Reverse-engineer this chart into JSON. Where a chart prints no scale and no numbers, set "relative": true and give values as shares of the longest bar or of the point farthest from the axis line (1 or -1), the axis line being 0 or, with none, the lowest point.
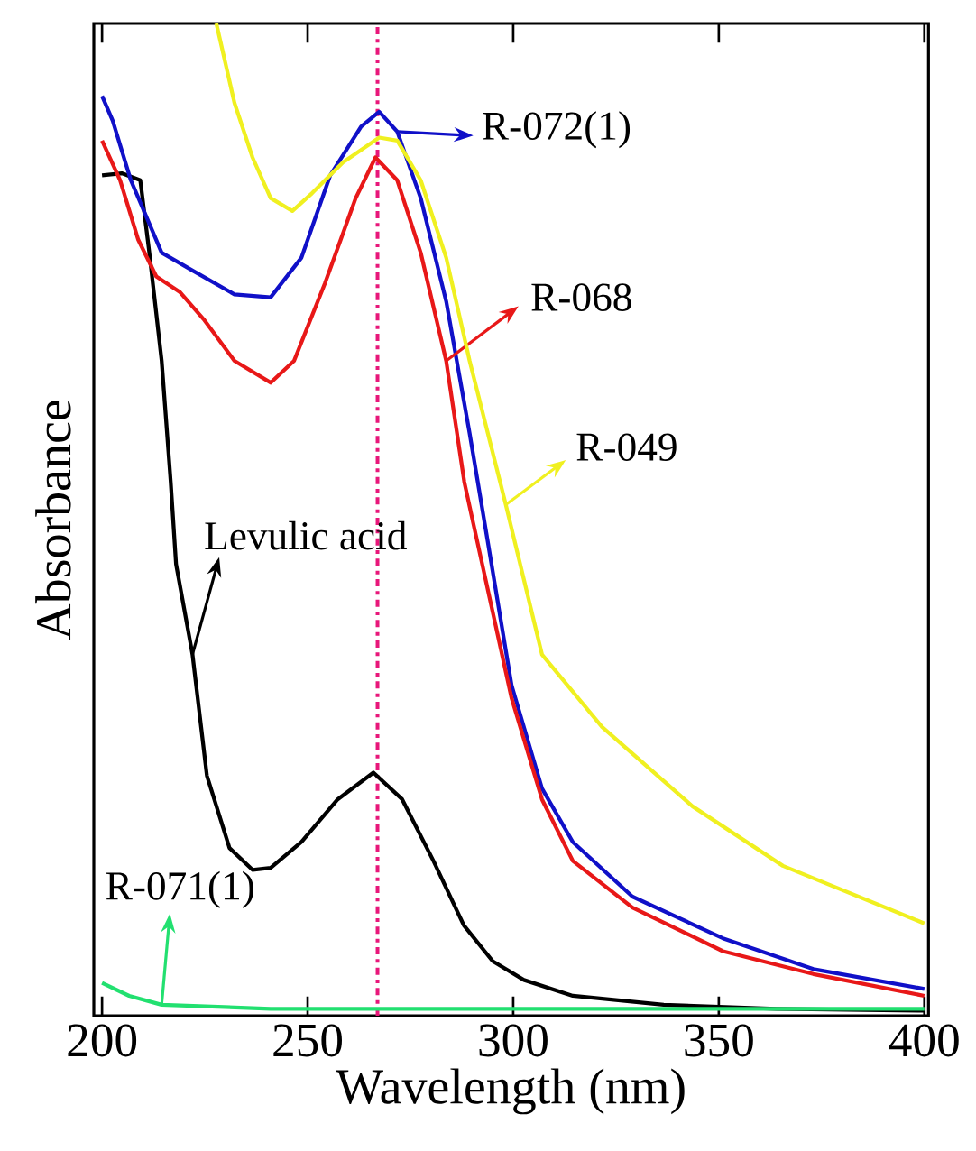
{
  "chart_data": {
    "type": "line",
    "xlabel": "Wavelength (nm)",
    "ylabel": "Absorbance",
    "relative": true,
    "xlim": [
      198,
      401
    ],
    "xticks": [
      200,
      250,
      300,
      350,
      400
    ],
    "grid": false,
    "legend": "right",
    "marker": "none",
    "line_style": "solid",
    "series": [
      {
        "name": "Levulic acid",
        "color": "#000000",
        "x": [
          200,
          204.8,
          209.3,
          211.5,
          214.5,
          216.7,
          218,
          222,
          225.5,
          231,
          236.6,
          241,
          248.5,
          257.3,
          266,
          273,
          280.6,
          288,
          295,
          302.6,
          314.5,
          336.6,
          364,
          400
        ],
        "values": [
          0.847,
          0.849,
          0.842,
          0.769,
          0.66,
          0.538,
          0.455,
          0.364,
          0.242,
          0.169,
          0.147,
          0.149,
          0.175,
          0.218,
          0.245,
          0.218,
          0.156,
          0.091,
          0.055,
          0.036,
          0.02,
          0.011,
          0.007,
          0.005
        ]
      },
      {
        "name": "R-072(1)",
        "color": "#1010c8",
        "x": [
          200,
          202.6,
          207,
          214.5,
          222,
          232.2,
          241,
          248.5,
          255.5,
          263,
          267.4,
          271.8,
          277.5,
          283.7,
          289.4,
          293.8,
          299.6,
          307,
          314.5,
          329,
          351,
          373,
          400
        ],
        "values": [
          0.927,
          0.902,
          0.842,
          0.769,
          0.751,
          0.727,
          0.724,
          0.764,
          0.847,
          0.896,
          0.911,
          0.891,
          0.824,
          0.72,
          0.587,
          0.478,
          0.333,
          0.229,
          0.175,
          0.12,
          0.078,
          0.047,
          0.027
        ]
      },
      {
        "name": "R-068",
        "color": "#e81818",
        "x": [
          200,
          204.4,
          208.8,
          213.2,
          219,
          224.7,
          232.2,
          241,
          246.7,
          254.2,
          261.7,
          266.5,
          271.8,
          277.5,
          283.7,
          288.1,
          290.3,
          299.6,
          307,
          314.5,
          329,
          351,
          373,
          400
        ],
        "values": [
          0.882,
          0.842,
          0.782,
          0.745,
          0.729,
          0.702,
          0.66,
          0.638,
          0.66,
          0.738,
          0.824,
          0.865,
          0.842,
          0.769,
          0.66,
          0.538,
          0.496,
          0.32,
          0.218,
          0.156,
          0.109,
          0.065,
          0.042,
          0.02
        ]
      },
      {
        "name": "R-049",
        "color": "#f0f020",
        "x": [
          227.8,
          232.2,
          236.6,
          241,
          246.3,
          251.1,
          258.6,
          267.4,
          271.8,
          277.5,
          283.7,
          289.4,
          298.2,
          307,
          321.6,
          343.6,
          365.6,
          400
        ],
        "values": [
          1.0,
          0.92,
          0.865,
          0.824,
          0.811,
          0.829,
          0.86,
          0.885,
          0.882,
          0.842,
          0.764,
          0.66,
          0.515,
          0.364,
          0.291,
          0.211,
          0.151,
          0.093
        ]
      },
      {
        "name": "R-071(1)",
        "color": "#22e070",
        "x": [
          200,
          206.6,
          214.5,
          241,
          400
        ],
        "values": [
          0.033,
          0.02,
          0.011,
          0.007,
          0.007
        ]
      }
    ],
    "ref_lines": [
      {
        "axis": "x",
        "value": 267,
        "color": "#e8177a",
        "line_style": "dashdot"
      }
    ]
  }
}
